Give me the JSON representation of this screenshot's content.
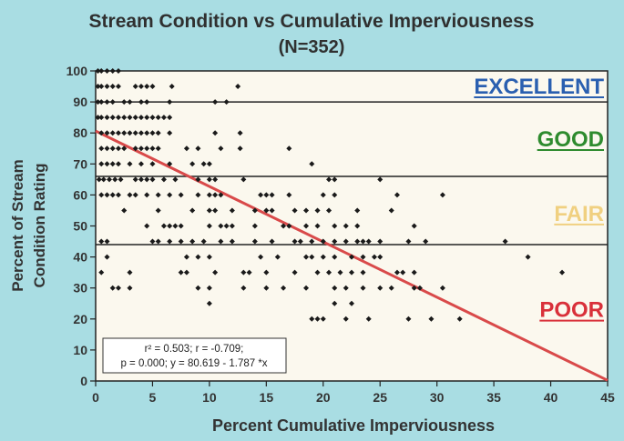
{
  "chart_data": {
    "type": "scatter",
    "title": "Stream Condition vs Cumulative Imperviousness",
    "subtitle": "(N=352)",
    "xlabel": "Percent Cumulative Imperviousness",
    "ylabel_line1": "Percent of Stream",
    "ylabel_line2": "Condition Rating",
    "xlim": [
      0,
      45
    ],
    "ylim": [
      0,
      100
    ],
    "xticks": [
      0,
      5,
      10,
      15,
      20,
      25,
      30,
      35,
      40,
      45
    ],
    "yticks": [
      0,
      10,
      20,
      30,
      40,
      50,
      60,
      70,
      80,
      90,
      100
    ],
    "thresholds": [
      90,
      66,
      44
    ],
    "zones": [
      {
        "label": "EXCELLENT",
        "y": 95,
        "color": "#2a5fb0"
      },
      {
        "label": "GOOD",
        "y": 78,
        "color": "#2e8b2e"
      },
      {
        "label": "FAIR",
        "y": 54,
        "color": "#f0d080"
      },
      {
        "label": "POOR",
        "y": 23,
        "color": "#d9303a"
      }
    ],
    "regression": {
      "intercept": 80.619,
      "slope": -1.787,
      "color": "#d94a4a"
    },
    "stats_line1": "r² = 0.503;  r = -0.709;",
    "stats_line2": "p = 0.000;  y = 80.619 - 1.787 *x",
    "points": [
      [
        0.2,
        100
      ],
      [
        0.5,
        100
      ],
      [
        1,
        100
      ],
      [
        1.5,
        100
      ],
      [
        2,
        100
      ],
      [
        0.2,
        95
      ],
      [
        0.5,
        95
      ],
      [
        1,
        95
      ],
      [
        1.5,
        95
      ],
      [
        2,
        95
      ],
      [
        3.5,
        95
      ],
      [
        4,
        95
      ],
      [
        4.5,
        95
      ],
      [
        5,
        95
      ],
      [
        6.7,
        95
      ],
      [
        12.5,
        95
      ],
      [
        0.2,
        90
      ],
      [
        0.5,
        90
      ],
      [
        1,
        90
      ],
      [
        1.5,
        90
      ],
      [
        2.5,
        90
      ],
      [
        3,
        90
      ],
      [
        4,
        90
      ],
      [
        4.5,
        90
      ],
      [
        6.5,
        90
      ],
      [
        10.5,
        90
      ],
      [
        11.5,
        90
      ],
      [
        0.2,
        85
      ],
      [
        0.5,
        85
      ],
      [
        1,
        85
      ],
      [
        1.5,
        85
      ],
      [
        2,
        85
      ],
      [
        2.5,
        85
      ],
      [
        3,
        85
      ],
      [
        3.5,
        85
      ],
      [
        4,
        85
      ],
      [
        4.5,
        85
      ],
      [
        5,
        85
      ],
      [
        5.5,
        85
      ],
      [
        6,
        85
      ],
      [
        6.5,
        85
      ],
      [
        0.5,
        80
      ],
      [
        1,
        80
      ],
      [
        1.5,
        80
      ],
      [
        2,
        80
      ],
      [
        2.5,
        80
      ],
      [
        3,
        80
      ],
      [
        3.5,
        80
      ],
      [
        4,
        80
      ],
      [
        4.5,
        80
      ],
      [
        5,
        80
      ],
      [
        5.5,
        80
      ],
      [
        6.5,
        80
      ],
      [
        10.5,
        80
      ],
      [
        12.7,
        80
      ],
      [
        0.5,
        75
      ],
      [
        1,
        75
      ],
      [
        1.5,
        75
      ],
      [
        2,
        75
      ],
      [
        2.5,
        75
      ],
      [
        3.5,
        75
      ],
      [
        4,
        75
      ],
      [
        4.5,
        75
      ],
      [
        5,
        75
      ],
      [
        5.5,
        75
      ],
      [
        8,
        75
      ],
      [
        9,
        75
      ],
      [
        11,
        75
      ],
      [
        12.7,
        75
      ],
      [
        17,
        75
      ],
      [
        0.5,
        70
      ],
      [
        1,
        70
      ],
      [
        1.5,
        70
      ],
      [
        2,
        70
      ],
      [
        3,
        70
      ],
      [
        4,
        70
      ],
      [
        5,
        70
      ],
      [
        6.5,
        70
      ],
      [
        8.5,
        70
      ],
      [
        9.5,
        70
      ],
      [
        10,
        70
      ],
      [
        19,
        70
      ],
      [
        0.3,
        65
      ],
      [
        0.7,
        65
      ],
      [
        1.2,
        65
      ],
      [
        1.7,
        65
      ],
      [
        2.2,
        65
      ],
      [
        3.5,
        65
      ],
      [
        4,
        65
      ],
      [
        4.5,
        65
      ],
      [
        5,
        65
      ],
      [
        6,
        65
      ],
      [
        7,
        65
      ],
      [
        9,
        65
      ],
      [
        10,
        65
      ],
      [
        10.5,
        65
      ],
      [
        13,
        65
      ],
      [
        20.5,
        65
      ],
      [
        21,
        65
      ],
      [
        25,
        65
      ],
      [
        0.5,
        60
      ],
      [
        1,
        60
      ],
      [
        1.5,
        60
      ],
      [
        2,
        60
      ],
      [
        3,
        60
      ],
      [
        3.5,
        60
      ],
      [
        4.5,
        60
      ],
      [
        5.5,
        60
      ],
      [
        6.5,
        60
      ],
      [
        7.5,
        60
      ],
      [
        9,
        60
      ],
      [
        10,
        60
      ],
      [
        10.5,
        60
      ],
      [
        11,
        60
      ],
      [
        14.5,
        60
      ],
      [
        15,
        60
      ],
      [
        15.5,
        60
      ],
      [
        17,
        60
      ],
      [
        20,
        60
      ],
      [
        21,
        60
      ],
      [
        26.5,
        60
      ],
      [
        30.5,
        60
      ],
      [
        2.5,
        55
      ],
      [
        5.5,
        55
      ],
      [
        8.5,
        55
      ],
      [
        10,
        55
      ],
      [
        10.5,
        55
      ],
      [
        12,
        55
      ],
      [
        14,
        55
      ],
      [
        15,
        55
      ],
      [
        15.5,
        55
      ],
      [
        17.5,
        55
      ],
      [
        18.5,
        55
      ],
      [
        19.5,
        55
      ],
      [
        20.5,
        55
      ],
      [
        23,
        55
      ],
      [
        26,
        55
      ],
      [
        4.5,
        50
      ],
      [
        6,
        50
      ],
      [
        6.5,
        50
      ],
      [
        7,
        50
      ],
      [
        7.5,
        50
      ],
      [
        10,
        50
      ],
      [
        11,
        50
      ],
      [
        11.5,
        50
      ],
      [
        12,
        50
      ],
      [
        14,
        50
      ],
      [
        16.5,
        50
      ],
      [
        17,
        50
      ],
      [
        18.5,
        50
      ],
      [
        19.5,
        50
      ],
      [
        21,
        50
      ],
      [
        22,
        50
      ],
      [
        23,
        50
      ],
      [
        28,
        50
      ],
      [
        0.5,
        45
      ],
      [
        1,
        45
      ],
      [
        5,
        45
      ],
      [
        5.5,
        45
      ],
      [
        6.5,
        45
      ],
      [
        7.5,
        45
      ],
      [
        8.5,
        45
      ],
      [
        9.5,
        45
      ],
      [
        11,
        45
      ],
      [
        12,
        45
      ],
      [
        14,
        45
      ],
      [
        15.5,
        45
      ],
      [
        17.5,
        45
      ],
      [
        18,
        45
      ],
      [
        19,
        45
      ],
      [
        20,
        45
      ],
      [
        21,
        45
      ],
      [
        22,
        45
      ],
      [
        23,
        45
      ],
      [
        23.5,
        45
      ],
      [
        24,
        45
      ],
      [
        25,
        45
      ],
      [
        27.5,
        45
      ],
      [
        29,
        45
      ],
      [
        36,
        45
      ],
      [
        1,
        40
      ],
      [
        8,
        40
      ],
      [
        9,
        40
      ],
      [
        10,
        40
      ],
      [
        14.5,
        40
      ],
      [
        16,
        40
      ],
      [
        18.5,
        40
      ],
      [
        19,
        40
      ],
      [
        20,
        40
      ],
      [
        21,
        40
      ],
      [
        22.5,
        40
      ],
      [
        23.5,
        40
      ],
      [
        24.5,
        40
      ],
      [
        25,
        40
      ],
      [
        38,
        40
      ],
      [
        0.5,
        35
      ],
      [
        3,
        35
      ],
      [
        7.5,
        35
      ],
      [
        8,
        35
      ],
      [
        10.5,
        35
      ],
      [
        13,
        35
      ],
      [
        13.5,
        35
      ],
      [
        15,
        35
      ],
      [
        17.5,
        35
      ],
      [
        19.5,
        35
      ],
      [
        20.5,
        35
      ],
      [
        21.5,
        35
      ],
      [
        22.5,
        35
      ],
      [
        23.5,
        35
      ],
      [
        26.5,
        35
      ],
      [
        27,
        35
      ],
      [
        28,
        35
      ],
      [
        41,
        35
      ],
      [
        1.5,
        30
      ],
      [
        2,
        30
      ],
      [
        3,
        30
      ],
      [
        9,
        30
      ],
      [
        10,
        30
      ],
      [
        13,
        30
      ],
      [
        15,
        30
      ],
      [
        16.5,
        30
      ],
      [
        18.5,
        30
      ],
      [
        21,
        30
      ],
      [
        22,
        30
      ],
      [
        23.5,
        30
      ],
      [
        25,
        30
      ],
      [
        26,
        30
      ],
      [
        28,
        30
      ],
      [
        28.5,
        30
      ],
      [
        30.5,
        30
      ],
      [
        10,
        25
      ],
      [
        21,
        25
      ],
      [
        22.5,
        25
      ],
      [
        19,
        20
      ],
      [
        19.5,
        20
      ],
      [
        20,
        20
      ],
      [
        22,
        20
      ],
      [
        24,
        20
      ],
      [
        27.5,
        20
      ],
      [
        29.5,
        20
      ],
      [
        32,
        20
      ]
    ]
  }
}
